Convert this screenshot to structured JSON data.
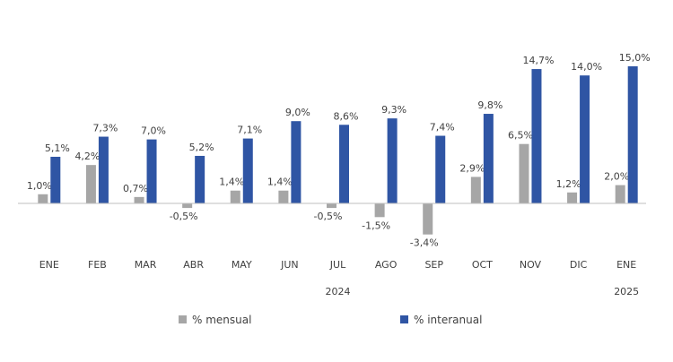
{
  "chart_data": {
    "type": "bar",
    "categories": [
      "ENE",
      "FEB",
      "MAR",
      "ABR",
      "MAY",
      "JUN",
      "JUL",
      "AGO",
      "SEP",
      "OCT",
      "NOV",
      "DIC",
      "ENE"
    ],
    "year_labels": [
      {
        "category_index": 6,
        "text": "2024"
      },
      {
        "category_index": 12,
        "text": "2025"
      }
    ],
    "series": [
      {
        "name": "% mensual",
        "color": "#a6a6a6",
        "values": [
          1.0,
          4.2,
          0.7,
          -0.5,
          1.4,
          1.4,
          -0.5,
          -1.5,
          -3.4,
          2.9,
          6.5,
          1.2,
          2.0
        ],
        "labels": [
          "1,0%",
          "4,2%",
          "0,7%",
          "-0,5%",
          "1,4%",
          "1,4%",
          "-0,5%",
          "-1,5%",
          "-3,4%",
          "2,9%",
          "6,5%",
          "1,2%",
          "2,0%"
        ]
      },
      {
        "name": "% interanual",
        "color": "#2f55a4",
        "values": [
          5.1,
          7.3,
          7.0,
          5.2,
          7.1,
          9.0,
          8.6,
          9.3,
          7.4,
          9.8,
          14.7,
          14.0,
          15.0
        ],
        "labels": [
          "5,1%",
          "7,3%",
          "7,0%",
          "5,2%",
          "7,1%",
          "9,0%",
          "8,6%",
          "9,3%",
          "7,4%",
          "9,8%",
          "14,7%",
          "14,0%",
          "15,0%"
        ]
      }
    ],
    "ylim": [
      -3.4,
      15.0
    ],
    "grid": false,
    "legend_position": "bottom",
    "title": "",
    "xlabel": "",
    "ylabel": ""
  }
}
